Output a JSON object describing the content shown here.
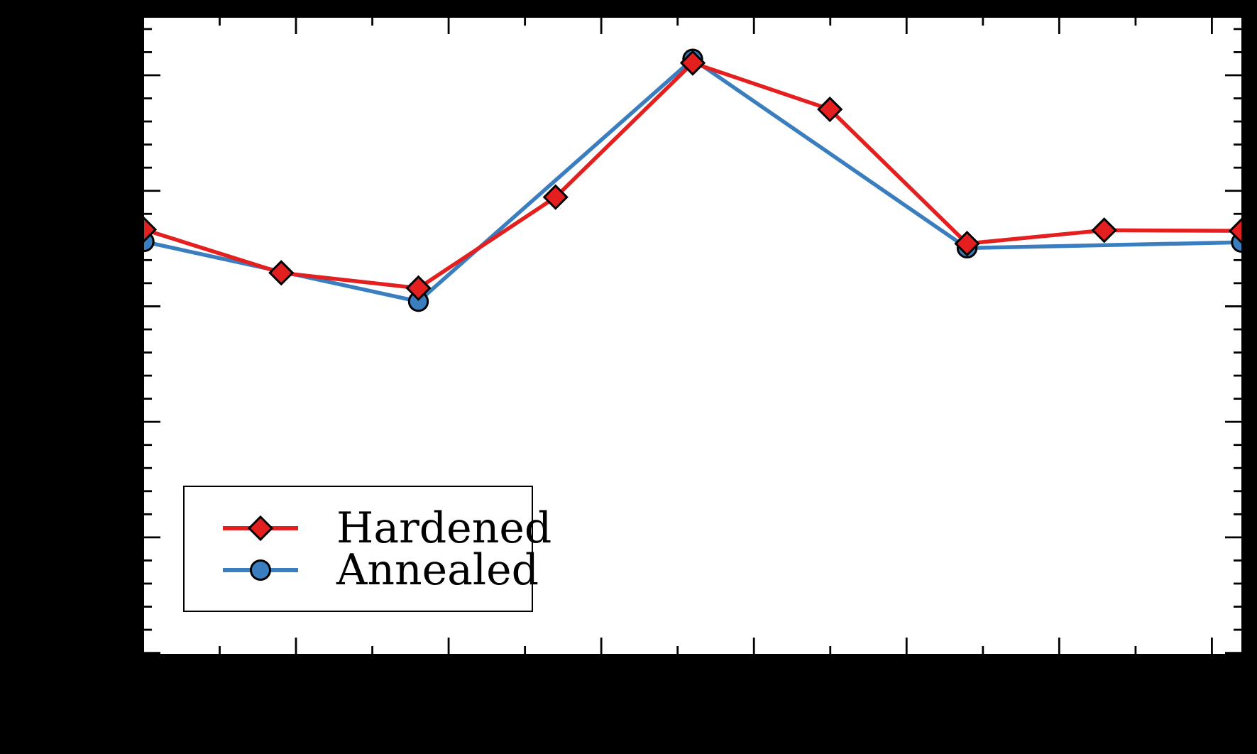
{
  "figure": {
    "background_color": "#000000",
    "plot_background_color": "#ffffff",
    "spine_color": "#000000",
    "axis_text_visible": false
  },
  "legend": {
    "position": "lower left",
    "background_color": "#ffffff",
    "border_color": "#000000",
    "items": [
      {
        "label": "Hardened",
        "marker": "diamond",
        "color": "#e3201f"
      },
      {
        "label": "Annealed",
        "marker": "circle",
        "color": "#3b7ec0"
      }
    ]
  },
  "chart_data": {
    "type": "line",
    "title": "",
    "xlabel": "",
    "ylabel": "",
    "note": "Figure title, axis titles and tick labels are rendered black-on-black and are not visible in the pixels. X values are evenly spaced index positions 0-8 across the axis; Y values are fractions of the plot height measured from the bottom spine.",
    "x_range": [
      0,
      8
    ],
    "y_range": [
      0,
      1
    ],
    "series": [
      {
        "name": "Hardened",
        "color": "#e3201f",
        "marker": "diamond",
        "line_width": 5.5,
        "points": [
          {
            "x": 0,
            "y": 0.667
          },
          {
            "x": 1,
            "y": 0.599
          },
          {
            "x": 2,
            "y": 0.575
          },
          {
            "x": 3,
            "y": 0.718
          },
          {
            "x": 4,
            "y": 0.929
          },
          {
            "x": 5,
            "y": 0.856
          },
          {
            "x": 6,
            "y": 0.645
          },
          {
            "x": 7,
            "y": 0.666
          },
          {
            "x": 8,
            "y": 0.665
          }
        ]
      },
      {
        "name": "Annealed",
        "color": "#3b7ec0",
        "marker": "circle",
        "line_width": 5.5,
        "points": [
          {
            "x": 0,
            "y": 0.648
          },
          {
            "x": 2,
            "y": 0.554
          },
          {
            "x": 4,
            "y": 0.935
          },
          {
            "x": 6,
            "y": 0.638
          },
          {
            "x": 8,
            "y": 0.647
          }
        ]
      }
    ],
    "axes": {
      "x_major_tick_count": 7,
      "x_minor_tick_count": 7,
      "y_major_tick_count": 6,
      "y_minor_per_major_interval": 4,
      "tick_direction": "in",
      "ticks_on_all_four_spines": true,
      "grid": false,
      "tick_labels_visible": false
    },
    "legend_entries": [
      "Hardened",
      "Annealed"
    ],
    "legend_position": "lower left"
  }
}
